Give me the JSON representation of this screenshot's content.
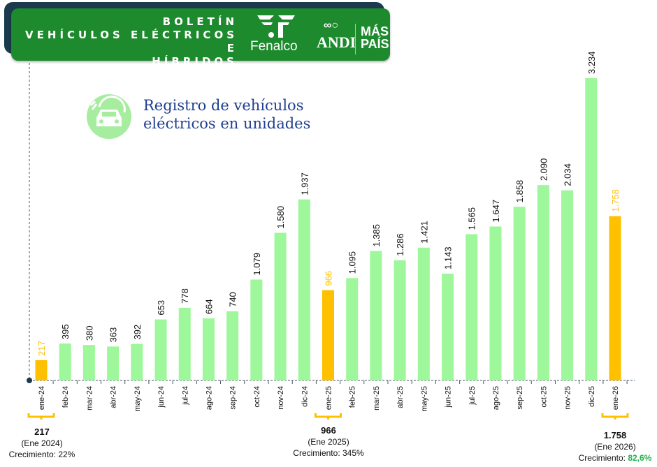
{
  "header": {
    "title_lines": [
      "BOLETÍN",
      "VEHÍCULOS ELÉCTRICOS E",
      "HÍBRIDOS"
    ],
    "logos": [
      "Fenalco",
      "ANDI",
      "MÁS",
      "PAÍS"
    ]
  },
  "subtitle": {
    "icon": "electric-car-plug-icon",
    "line1": "Registro de vehículos",
    "line2": "eléctricos  en unidades"
  },
  "chart_data": {
    "type": "bar",
    "title": "Registro de vehículos eléctricos en unidades",
    "categories": [
      "ene-24",
      "feb-24",
      "mar-24",
      "abr-24",
      "may-24",
      "jun-24",
      "jul-24",
      "ago-24",
      "sep-24",
      "oct-24",
      "nov-24",
      "dic-24",
      "ene-25",
      "feb-25",
      "mar-25",
      "abr-25",
      "may-25",
      "jun-25",
      "jul-25",
      "ago-25",
      "sep-25",
      "oct-25",
      "nov-25",
      "dic-25",
      "ene-26"
    ],
    "values": [
      217,
      395,
      380,
      363,
      392,
      653,
      778,
      664,
      740,
      1079,
      1580,
      1937,
      966,
      1095,
      1385,
      1286,
      1421,
      1143,
      1565,
      1647,
      1858,
      2090,
      2034,
      3234,
      1758
    ],
    "labels": [
      "217",
      "395",
      "380",
      "363",
      "392",
      "653",
      "778",
      "664",
      "740",
      "1.079",
      "1.580",
      "1.937",
      "966",
      "1.095",
      "1.385",
      "1.286",
      "1.421",
      "1.143",
      "1.565",
      "1.647",
      "1.858",
      "2.090",
      "2.034",
      "3.234",
      "1.758"
    ],
    "highlighted": [
      "ene-24",
      "ene-25",
      "ene-26"
    ],
    "ylim": [
      0,
      3234
    ],
    "grid": false,
    "colors": {
      "bar": "#9ef79a",
      "highlight": "#ffc000",
      "label": "#111111",
      "axis": "#44546a"
    }
  },
  "notes": [
    {
      "value": "217",
      "period": "(Ene 2024)",
      "growth_label": "Crecimiento: ",
      "growth": "22%"
    },
    {
      "value": "966",
      "period": "(Ene 2025)",
      "growth_label": "Crecimiento: ",
      "growth": "345%"
    },
    {
      "value": "1.758",
      "period": "(Ene 2026)",
      "growth_label": "Crecimiento: ",
      "growth": "82,6%"
    }
  ]
}
